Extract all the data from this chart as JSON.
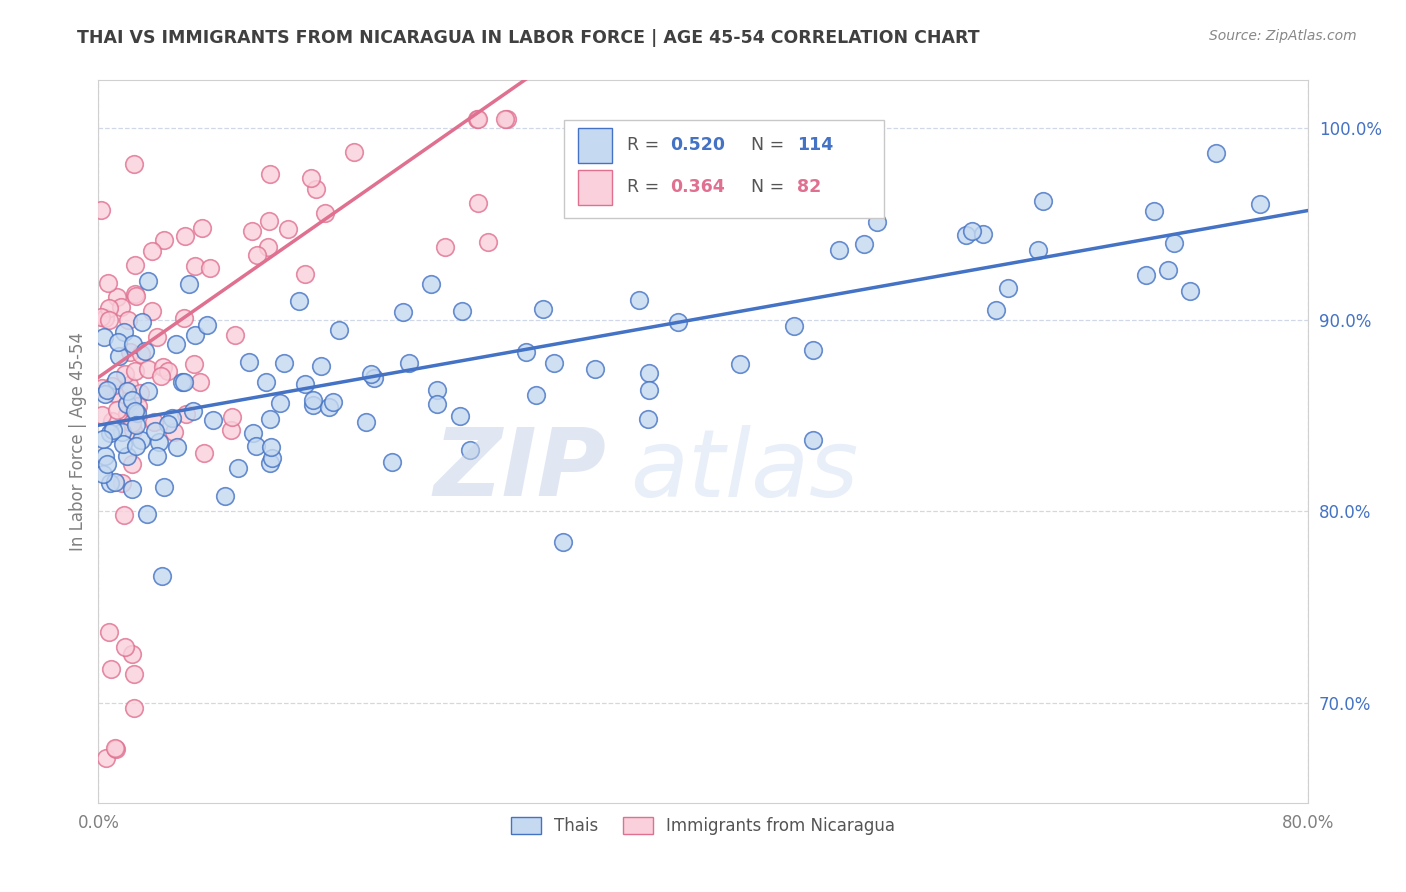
{
  "title": "THAI VS IMMIGRANTS FROM NICARAGUA IN LABOR FORCE | AGE 45-54 CORRELATION CHART",
  "source": "Source: ZipAtlas.com",
  "ylabel": "In Labor Force | Age 45-54",
  "xmin": 0.0,
  "xmax": 0.8,
  "ymin": 0.648,
  "ymax": 1.025,
  "y_ticks": [
    0.7,
    0.8,
    0.9,
    1.0
  ],
  "y_tick_labels": [
    "70.0%",
    "80.0%",
    "90.0%",
    "100.0%"
  ],
  "x_ticks": [
    0.0,
    0.8
  ],
  "x_tick_labels": [
    "0.0%",
    "80.0%"
  ],
  "thai_color": "#c5d9f0",
  "thai_edge_color": "#4472c4",
  "nic_color": "#f9d0db",
  "nic_edge_color": "#e07090",
  "thai_r": 0.52,
  "thai_n": 114,
  "nic_r": 0.364,
  "nic_n": 82,
  "legend_labels": [
    "Thais",
    "Immigrants from Nicaragua"
  ],
  "thai_line_color": "#4472c4",
  "nic_line_color": "#e07090",
  "background_color": "#ffffff",
  "grid_color": "#d0d8e8",
  "title_color": "#404040",
  "axis_color": "#808080",
  "ytick_color": "#4472c4",
  "xtick_color": "#808080",
  "legend_r_color_thai": "#4472c4",
  "legend_r_color_nic": "#e07090",
  "legend_n_color_thai": "#4472c4",
  "legend_n_color_nic": "#e07090",
  "watermark_zip_color": "#c8d4e8",
  "watermark_atlas_color": "#c8d4e8"
}
